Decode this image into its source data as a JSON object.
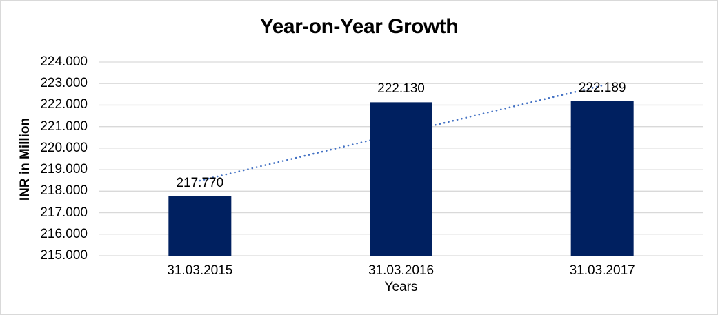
{
  "window": {
    "background": "#ffffff",
    "border_color": "#d9d9d9"
  },
  "chart_data": {
    "type": "bar",
    "title": "Year-on-Year Growth",
    "xlabel": "Years",
    "ylabel": "INR in Million",
    "categories": [
      "31.03.2015",
      "31.03.2016",
      "31.03.2017"
    ],
    "values": [
      217.77,
      222.13,
      222.189
    ],
    "data_labels": [
      "217.770",
      "222.130",
      "222.189"
    ],
    "y_ticks": [
      "215.000",
      "216.000",
      "217.000",
      "218.000",
      "219.000",
      "220.000",
      "221.000",
      "222.000",
      "223.000",
      "224.000"
    ],
    "ylim": [
      215,
      224
    ],
    "grid": true,
    "legend": "none",
    "bar_color": "#002060",
    "gridline_color": "#d9d9d9",
    "label_color": "#000000",
    "trendline": {
      "type": "linear",
      "style": "dotted",
      "color": "#4472c4",
      "start_value": 218.49,
      "end_value": 222.91
    }
  }
}
